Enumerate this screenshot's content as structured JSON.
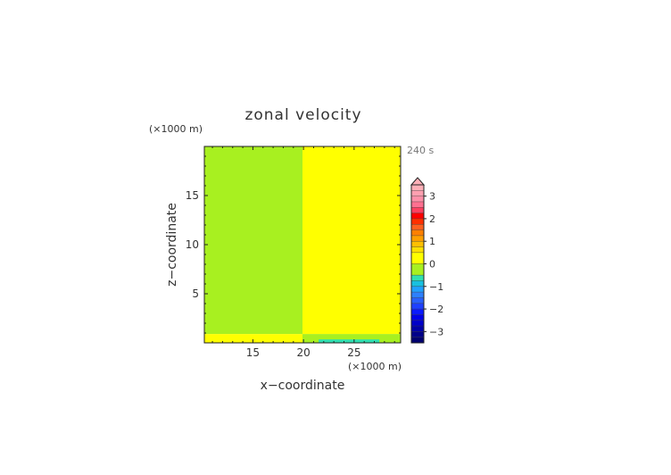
{
  "chart_data": {
    "type": "heatmap",
    "title": "zonal velocity",
    "time_label": "240 s",
    "xlabel": "x−coordinate",
    "ylabel": "z−coordinate",
    "x_unit": "(×1000 m)",
    "y_unit": "(×1000 m)",
    "xlim": [
      10.2,
      29.6
    ],
    "ylim": [
      0,
      20
    ],
    "x_ticks": [
      15,
      20,
      25
    ],
    "x_tick_labels": [
      "15",
      "20",
      "25"
    ],
    "y_ticks": [
      5,
      10,
      15
    ],
    "y_tick_labels": [
      "5",
      "10",
      "15"
    ],
    "regions": [
      {
        "x0": 10.2,
        "x1": 19.9,
        "y0": 0.9,
        "y1": 20,
        "value": -0.25
      },
      {
        "x0": 19.9,
        "x1": 29.6,
        "y0": 0.9,
        "y1": 20,
        "value": 0.25
      },
      {
        "x0": 10.2,
        "x1": 19.9,
        "y0": 0.0,
        "y1": 0.9,
        "value": 0.25
      },
      {
        "x0": 19.9,
        "x1": 29.6,
        "y0": 0.0,
        "y1": 0.9,
        "value": -0.25
      },
      {
        "x0": 21.5,
        "x1": 27.5,
        "y0": 0.0,
        "y1": 0.35,
        "value": -0.75
      }
    ],
    "colorbar": {
      "levels": [
        -3.5,
        -3.25,
        -3.0,
        -2.75,
        -2.5,
        -2.25,
        -2.0,
        -1.75,
        -1.5,
        -1.25,
        -1.0,
        -0.75,
        -0.5,
        0.0,
        0.5,
        0.75,
        1.0,
        1.25,
        1.5,
        1.75,
        2.0,
        2.25,
        2.5,
        2.75,
        3.0,
        3.25,
        3.5
      ],
      "colors": [
        "#000070",
        "#00008a",
        "#0000a8",
        "#0000c8",
        "#0000e8",
        "#0a1aff",
        "#1e40ff",
        "#2860ff",
        "#2c80ff",
        "#20a0ff",
        "#18c0e0",
        "#30e0b0",
        "#a8f020",
        "#ffff00",
        "#ffe000",
        "#ffc000",
        "#ffa000",
        "#ff8000",
        "#ff6020",
        "#ff3000",
        "#ff0000",
        "#ff4060",
        "#ff7090",
        "#ff90a8",
        "#ffa0b0",
        "#ffb0b8"
      ],
      "tick_values": [
        3,
        2,
        1,
        0,
        -1,
        -2,
        -3
      ],
      "tick_labels": [
        "3",
        "2",
        "1",
        "0",
        "−1",
        "−2",
        "−3"
      ],
      "extend_top": true
    }
  }
}
